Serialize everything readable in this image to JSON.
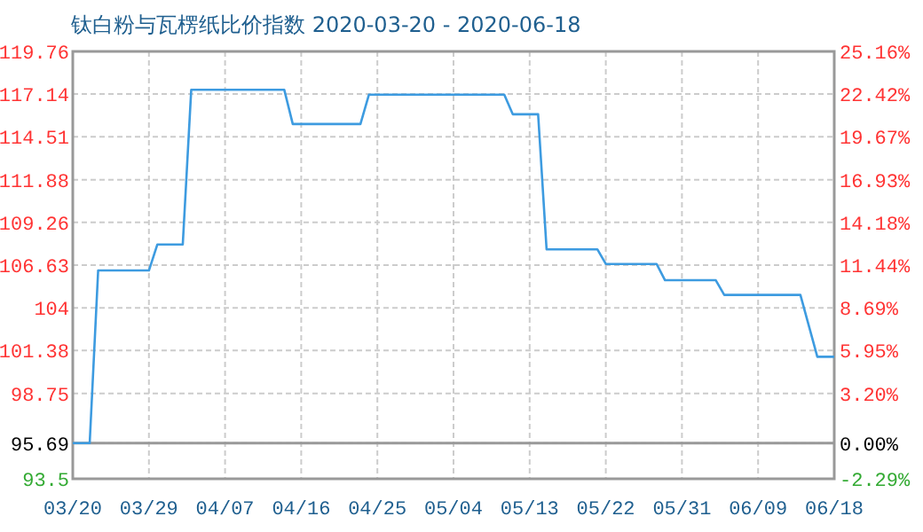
{
  "chart_data": {
    "type": "line",
    "title": "钛白粉与瓦楞纸比价指数 2020-03-20 - 2020-06-18",
    "x": [
      "2020-03-20",
      "2020-03-22",
      "2020-03-23",
      "2020-03-29",
      "2020-03-30",
      "2020-04-02",
      "2020-04-03",
      "2020-04-14",
      "2020-04-15",
      "2020-04-23",
      "2020-04-24",
      "2020-05-10",
      "2020-05-11",
      "2020-05-14",
      "2020-05-15",
      "2020-05-21",
      "2020-05-22",
      "2020-05-28",
      "2020-05-29",
      "2020-06-04",
      "2020-06-05",
      "2020-06-14",
      "2020-06-16",
      "2020-06-18"
    ],
    "series": [
      {
        "color": "#3d9be0",
        "values": [
          95.69,
          95.69,
          106.3,
          106.3,
          107.9,
          107.9,
          117.4,
          117.4,
          115.3,
          115.3,
          117.1,
          117.1,
          115.9,
          115.9,
          107.6,
          107.6,
          106.7,
          106.7,
          105.7,
          105.7,
          104.8,
          104.8,
          101.0,
          101.0
        ]
      }
    ],
    "xlim": [
      "2020-03-20",
      "2020-06-18"
    ],
    "xticks": [
      {
        "value": "2020-03-20",
        "label": "03/20"
      },
      {
        "value": "2020-03-29",
        "label": "03/29"
      },
      {
        "value": "2020-04-07",
        "label": "04/07"
      },
      {
        "value": "2020-04-16",
        "label": "04/16"
      },
      {
        "value": "2020-04-25",
        "label": "04/25"
      },
      {
        "value": "2020-05-04",
        "label": "05/04"
      },
      {
        "value": "2020-05-13",
        "label": "05/13"
      },
      {
        "value": "2020-05-22",
        "label": "05/22"
      },
      {
        "value": "2020-05-31",
        "label": "05/31"
      },
      {
        "value": "2020-06-09",
        "label": "06/09"
      },
      {
        "value": "2020-06-18",
        "label": "06/18"
      }
    ],
    "ylim": [
      93.5,
      119.76
    ],
    "yticks": [
      93.5,
      95.69,
      98.75,
      101.38,
      104,
      106.63,
      109.26,
      111.88,
      114.51,
      117.14,
      119.76
    ],
    "y2lim": [
      -2.29,
      25.16
    ],
    "y2ticks": [
      {
        "value": -2.29,
        "label": "-2.29%"
      },
      {
        "value": 0,
        "label": "0.00%"
      },
      {
        "value": 3.2,
        "label": "3.20%"
      },
      {
        "value": 5.95,
        "label": "5.95%"
      },
      {
        "value": 8.69,
        "label": "8.69%"
      },
      {
        "value": 11.44,
        "label": "11.44%"
      },
      {
        "value": 14.18,
        "label": "14.18%"
      },
      {
        "value": 16.93,
        "label": "16.93%"
      },
      {
        "value": 19.67,
        "label": "19.67%"
      },
      {
        "value": 22.42,
        "label": "22.42%"
      },
      {
        "value": 25.16,
        "label": "25.16%"
      }
    ],
    "ref_lines": [
      {
        "axis": "y",
        "value": 95.69,
        "color": "#999999"
      }
    ],
    "grid": true,
    "line_style": "solid",
    "marker": "none"
  }
}
